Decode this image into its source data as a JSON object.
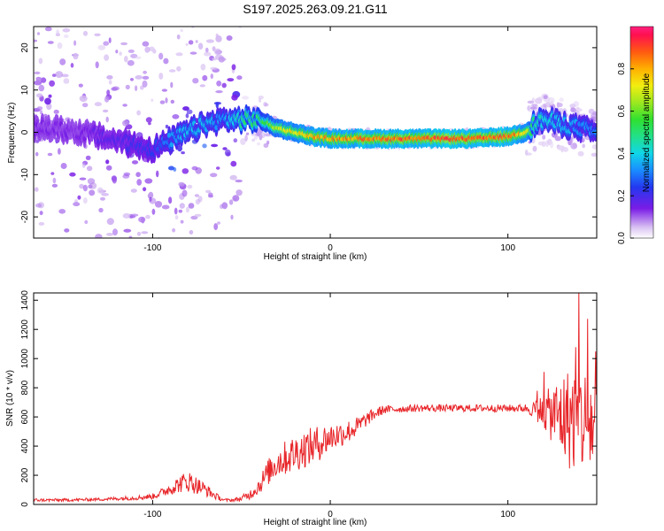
{
  "figure": {
    "title": "S197.2025.263.09.21.G11"
  },
  "chart_data": [
    {
      "type": "heatmap",
      "title": "",
      "xlabel": "Height of straight line (km)",
      "ylabel": "Frequency (Hz)",
      "xlim": [
        -167,
        150
      ],
      "ylim": [
        -25,
        25
      ],
      "xticks": [
        -100,
        0,
        100
      ],
      "yticks": [
        -20,
        -10,
        0,
        10,
        20
      ],
      "colorbar": {
        "label": "Normalized spectral amplitude",
        "range": [
          0,
          1
        ],
        "ticks": [
          "0.0",
          "0.2",
          "0.4",
          "0.6",
          "0.8"
        ]
      },
      "ridge": {
        "x": [
          -160,
          -140,
          -120,
          -100,
          -90,
          -80,
          -70,
          -60,
          -50,
          -40,
          -30,
          -20,
          -10,
          0,
          10,
          20,
          40,
          60,
          80,
          100,
          110,
          115,
          120,
          130,
          140,
          150
        ],
        "frequency": [
          1,
          0,
          -2,
          -4,
          -2,
          0,
          2,
          3,
          3,
          3,
          1,
          0,
          -1,
          -1.5,
          -1.5,
          -1.5,
          -1.5,
          -1.5,
          -1.5,
          -1,
          0,
          2,
          3,
          2,
          1,
          0
        ],
        "amplitude": [
          0.15,
          0.15,
          0.2,
          0.25,
          0.35,
          0.4,
          0.4,
          0.35,
          0.5,
          0.55,
          0.7,
          0.8,
          0.85,
          0.9,
          0.9,
          0.9,
          0.95,
          0.95,
          0.95,
          0.95,
          0.8,
          0.5,
          0.45,
          0.4,
          0.35,
          0.35
        ]
      }
    },
    {
      "type": "line",
      "title": "",
      "xlabel": "Height of straight line (km)",
      "ylabel": "SNR (10 * v/v)",
      "xlim": [
        -167,
        150
      ],
      "ylim": [
        0,
        1450
      ],
      "xticks": [
        -100,
        0,
        100
      ],
      "yticks": [
        0,
        200,
        400,
        600,
        800,
        1000,
        1200,
        1400
      ],
      "series": [
        {
          "color": "#e8262a",
          "x": [
            -167,
            -150,
            -130,
            -110,
            -100,
            -95,
            -90,
            -85,
            -80,
            -75,
            -70,
            -65,
            -60,
            -55,
            -50,
            -45,
            -40,
            -35,
            -30,
            -25,
            -20,
            -15,
            -10,
            -5,
            0,
            5,
            10,
            15,
            20,
            25,
            30,
            40,
            50,
            60,
            70,
            80,
            90,
            100,
            105,
            110,
            115,
            120,
            125,
            130,
            135,
            140,
            145,
            150
          ],
          "y": [
            30,
            30,
            35,
            45,
            55,
            80,
            110,
            140,
            160,
            130,
            100,
            60,
            30,
            30,
            40,
            70,
            130,
            220,
            290,
            320,
            350,
            380,
            400,
            430,
            460,
            480,
            500,
            530,
            580,
            620,
            650,
            655,
            660,
            660,
            660,
            660,
            660,
            660,
            660,
            660,
            650,
            640,
            620,
            600,
            590,
            580,
            560,
            540
          ],
          "noise": [
            10,
            10,
            10,
            15,
            20,
            30,
            45,
            60,
            75,
            60,
            45,
            25,
            10,
            10,
            20,
            35,
            60,
            90,
            110,
            120,
            130,
            130,
            130,
            120,
            100,
            90,
            80,
            70,
            50,
            40,
            30,
            25,
            25,
            25,
            25,
            25,
            25,
            25,
            25,
            30,
            60,
            120,
            200,
            300,
            360,
            380,
            380,
            380
          ]
        }
      ]
    }
  ]
}
